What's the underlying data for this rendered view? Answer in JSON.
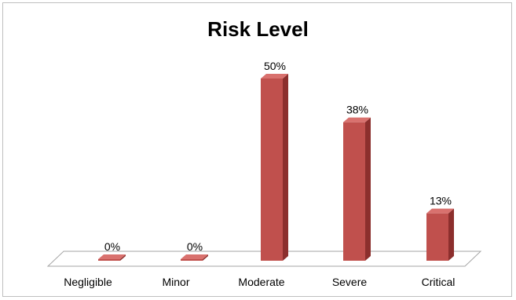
{
  "chart_data": {
    "type": "bar",
    "title": "Risk Level",
    "categories": [
      "Negligible",
      "Minor",
      "Moderate",
      "Severe",
      "Critical"
    ],
    "values": [
      0,
      0,
      50,
      38,
      13
    ],
    "data_labels": [
      "0%",
      "0%",
      "50%",
      "38%",
      "13%"
    ],
    "unit": "%",
    "ylim": [
      0,
      50
    ],
    "grid": false,
    "legend": "none",
    "style": "3d-column"
  },
  "colors": {
    "bar_front": "#c0504d",
    "bar_side": "#8c2f2d",
    "bar_top": "#d9716e",
    "floor_stroke": "#a6a6a6"
  }
}
